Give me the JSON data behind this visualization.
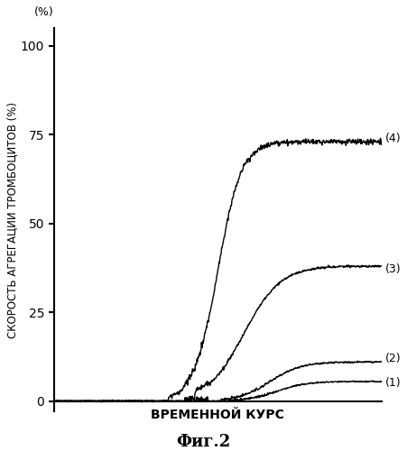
{
  "title": "",
  "xlabel": "ВРЕМЕННОЙ КУРС",
  "ylabel": "СКОРОСТЬ АГРЕГАЦИИ ТРОМБОЦИТОВ (%)",
  "fig_label": "Фиг.2",
  "ylim": [
    -3,
    105
  ],
  "xlim": [
    0,
    100
  ],
  "yticks": [
    0,
    25,
    50,
    75,
    100
  ],
  "background_color": "#ffffff",
  "line_color": "#000000",
  "curve_labels": [
    "(1)",
    "(2)",
    "(3)",
    "(4)"
  ],
  "c1": {
    "plateau": 5.5,
    "delay": 68,
    "steepness": 0.22,
    "noise": 0.25
  },
  "c2": {
    "plateau": 11,
    "delay": 66,
    "steepness": 0.21,
    "noise": 0.3
  },
  "c3": {
    "plateau": 38,
    "delay": 58,
    "steepness": 0.18,
    "noise": 0.4
  },
  "c4": {
    "plateau": 73,
    "delay": 50,
    "steepness": 0.28,
    "noise": 1.0
  }
}
